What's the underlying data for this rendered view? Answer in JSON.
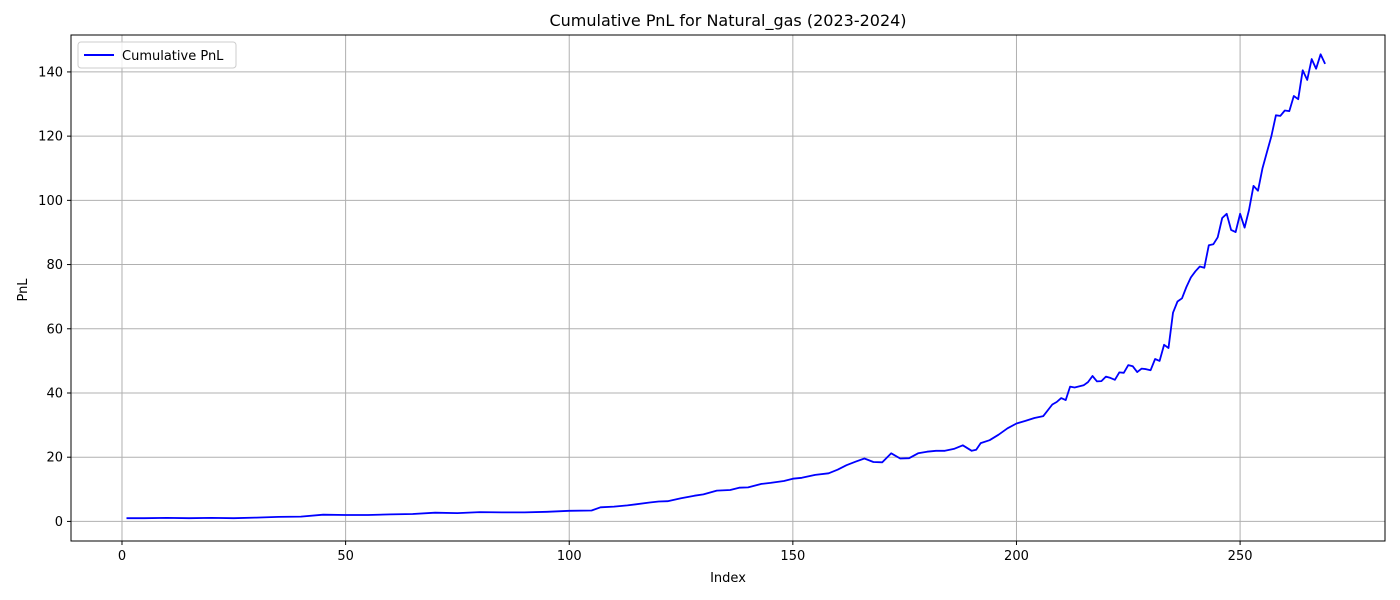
{
  "chart_data": {
    "type": "line",
    "title": "Cumulative PnL for Natural_gas (2023-2024)",
    "xlabel": "Index",
    "ylabel": "PnL",
    "xlim": [
      -11.4,
      282.4
    ],
    "ylim": [
      -6.1,
      151.5
    ],
    "xticks": [
      0,
      50,
      100,
      150,
      200,
      250
    ],
    "yticks": [
      0,
      20,
      40,
      60,
      80,
      100,
      120,
      140
    ],
    "grid": true,
    "legend": "top-left",
    "series": [
      {
        "name": "Cumulative PnL",
        "color": "#0000ff",
        "x": [
          1,
          5,
          10,
          15,
          20,
          25,
          30,
          35,
          40,
          45,
          50,
          55,
          60,
          65,
          70,
          75,
          80,
          85,
          90,
          95,
          100,
          105,
          107,
          110,
          113,
          118,
          120,
          122,
          125,
          128,
          130,
          133,
          136,
          138,
          140,
          143,
          145,
          148,
          150,
          152,
          155,
          158,
          160,
          162,
          164,
          166,
          168,
          170,
          172,
          174,
          176,
          178,
          180,
          182,
          184,
          186,
          188,
          190,
          191,
          192,
          194,
          196,
          198,
          200,
          202,
          204,
          206,
          208,
          209,
          210,
          211,
          212,
          213,
          215,
          216,
          217,
          218,
          219,
          220,
          221,
          222,
          223,
          224,
          225,
          226,
          227,
          228,
          229,
          230,
          231,
          232,
          233,
          234,
          235,
          236,
          237,
          238,
          239,
          240,
          241,
          242,
          243,
          244,
          245,
          246,
          247,
          248,
          249,
          250,
          251,
          252,
          253,
          254,
          255,
          256,
          257,
          258,
          259,
          260,
          261,
          262,
          263,
          264,
          265,
          266,
          267,
          268,
          269
        ],
        "y": [
          1.0,
          1.0,
          1.1,
          1.0,
          1.1,
          1.0,
          1.2,
          1.4,
          1.5,
          2.1,
          2.0,
          2.0,
          2.2,
          2.3,
          2.7,
          2.6,
          2.9,
          2.8,
          2.8,
          3.0,
          3.3,
          3.4,
          4.4,
          4.6,
          5.0,
          5.9,
          6.2,
          6.3,
          7.2,
          8.0,
          8.4,
          9.6,
          9.8,
          10.5,
          10.6,
          11.7,
          12.0,
          12.6,
          13.3,
          13.6,
          14.5,
          15.0,
          16.1,
          17.5,
          18.6,
          19.6,
          18.5,
          18.4,
          21.2,
          19.6,
          19.7,
          21.2,
          21.7,
          22.0,
          22.0,
          22.6,
          23.7,
          22.0,
          22.3,
          24.4,
          25.3,
          27.0,
          29.0,
          30.5,
          31.3,
          32.2,
          32.8,
          36.4,
          37.2,
          38.4,
          37.8,
          42.0,
          41.7,
          42.4,
          43.4,
          45.3,
          43.6,
          43.7,
          45.1,
          44.7,
          44.1,
          46.4,
          46.3,
          48.7,
          48.3,
          46.5,
          47.6,
          47.4,
          47.1,
          50.6,
          50.0,
          55.0,
          54.0,
          65.0,
          68.5,
          69.5,
          73.0,
          76.0,
          77.9,
          79.4,
          79.0,
          86.0,
          86.3,
          88.5,
          94.5,
          95.8,
          90.8,
          90.1,
          95.8,
          91.5,
          97.0,
          104.5,
          103.0,
          110.0,
          115.0,
          120.0,
          126.5,
          126.3,
          128.0,
          127.8,
          132.5,
          131.5,
          140.5,
          137.5,
          144.0,
          141.0,
          145.5,
          142.5
        ]
      }
    ]
  }
}
